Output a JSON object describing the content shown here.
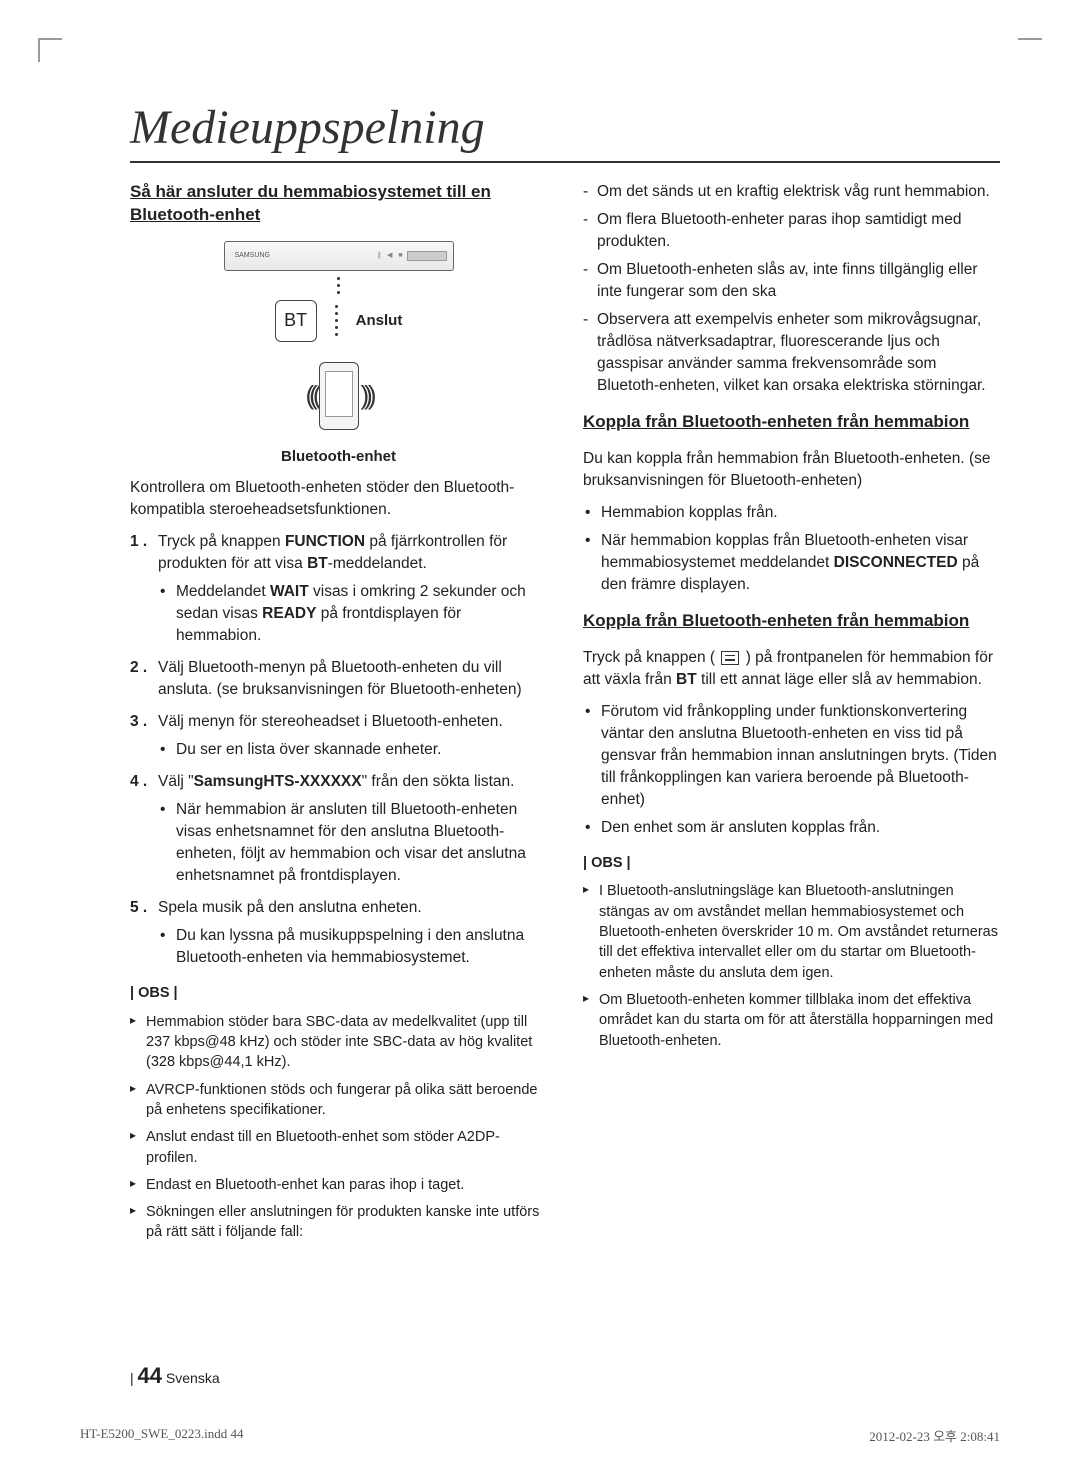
{
  "title": "Medieuppspelning",
  "left": {
    "heading": "Så här ansluter du hemmabiosystemet till en Bluetooth-enhet",
    "diagram": {
      "bt_label": "BT",
      "connect_label": "Anslut",
      "caption": "Bluetooth-enhet"
    },
    "intro": "Kontrollera om Bluetooth-enheten stöder den Bluetooth-kompatibla steroeheadsetsfunktionen.",
    "steps": [
      {
        "text_pre": "Tryck på knappen ",
        "bold1": "FUNCTION",
        "text_mid": " på fjärrkontrollen för produkten för att visa ",
        "bold2": "BT",
        "text_post": "-meddelandet.",
        "sub_pre": "Meddelandet ",
        "sub_bold1": "WAIT",
        "sub_mid": " visas i omkring 2 sekunder och sedan visas ",
        "sub_bold2": "READY",
        "sub_post": " på frontdisplayen för hemmabion."
      },
      {
        "text": "Välj Bluetooth-menyn på Bluetooth-enheten du vill ansluta. (se bruksanvisningen för Bluetooth-enheten)"
      },
      {
        "text": "Välj menyn för stereoheadset i Bluetooth-enheten.",
        "sub": "Du ser en lista över skannade enheter."
      },
      {
        "text_pre": "Välj \"",
        "bold1": "SamsungHTS-XXXXXX",
        "text_post": "\" från den sökta listan.",
        "sub": "När hemmabion är ansluten till Bluetooth-enheten visas enhetsnamnet för den anslutna Bluetooth-enheten, följt av hemmabion och visar det anslutna enhetsnamnet på frontdisplayen."
      },
      {
        "text": "Spela musik på den anslutna enheten.",
        "sub": "Du kan lyssna på musikuppspelning i den anslutna Bluetooth-enheten via hemmabiosystemet."
      }
    ],
    "obs_label": "| OBS |",
    "notes": [
      "Hemmabion stöder bara SBC-data av medelkvalitet (upp till 237 kbps@48 kHz) och stöder inte SBC-data av hög kvalitet (328 kbps@44,1 kHz).",
      "AVRCP-funktionen stöds och fungerar på olika sätt beroende på enhetens specifikationer.",
      "Anslut endast till en Bluetooth-enhet som stöder A2DP-profilen.",
      "Endast en Bluetooth-enhet kan paras ihop i taget.",
      "Sökningen eller anslutningen för produkten kanske inte utförs på rätt sätt i följande fall:"
    ]
  },
  "right": {
    "dash_list": [
      "Om det sänds ut en kraftig elektrisk våg runt hemmabion.",
      "Om flera Bluetooth-enheter paras ihop samtidigt med produkten.",
      "Om Bluetooth-enheten slås av, inte finns tillgänglig eller inte fungerar som den ska",
      "Observera att exempelvis enheter som mikrovågsugnar, trådlösa nätverksadaptrar, fluorescerande ljus och gasspisar använder samma frekvensområde som Bluetoth-enheten, vilket kan orsaka elektriska störningar."
    ],
    "h2a": "Koppla från Bluetooth-enheten från hemmabion",
    "para_a": "Du kan koppla från hemmabion från Bluetooth-enheten. (se bruksanvisningen för Bluetooth-enheten)",
    "bul_a": [
      "Hemmabion kopplas från.",
      "När hemmabion kopplas från Bluetooth-enheten visar hemmabiosystemet meddelandet [[B:DISCONNECTED]] på den främre displayen."
    ],
    "h2b": "Koppla från Bluetooth-enheten från hemmabion",
    "para_b_pre": "Tryck på knappen ( ",
    "para_b_post": " ) på frontpanelen för hemmabion för att växla från ",
    "para_b_bold": "BT",
    "para_b_tail": " till ett annat läge eller slå av hemmabion.",
    "bul_b": [
      "Förutom vid frånkoppling under funktionskonvertering väntar den anslutna Bluetooth-enheten en viss tid på gensvar från hemmabion innan anslutningen bryts. (Tiden till frånkopplingen kan variera beroende på Bluetooth-enhet)",
      "Den enhet som är ansluten kopplas från."
    ],
    "obs_label": "| OBS |",
    "notes": [
      "I Bluetooth-anslutningsläge kan Bluetooth-anslutningen stängas av om avståndet mellan hemmabiosystemet och Bluetooth-enheten överskrider 10 m. Om avståndet returneras till det effektiva intervallet eller om du startar om Bluetooth-enheten måste du ansluta dem igen.",
      "Om Bluetooth-enheten kommer tillblaka inom det effektiva området kan du starta om för att återställa hopparningen med Bluetooth-enheten."
    ]
  },
  "footer": {
    "page_number": "44",
    "lang": "Svenska",
    "file": "HT-E5200_SWE_0223.indd   44",
    "timestamp": "2012-02-23   오후 2:08:41"
  }
}
